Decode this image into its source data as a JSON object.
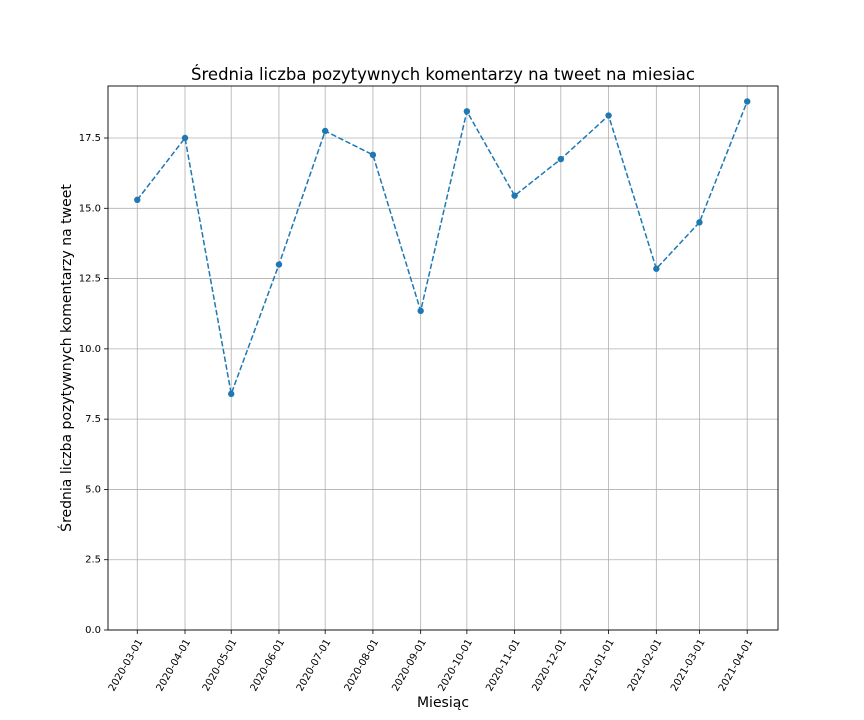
{
  "chart_data": {
    "type": "line",
    "title": "Średnia liczba pozytywnych komentarzy na tweet na miesiac",
    "xlabel": "Miesiąc",
    "ylabel": "Średnia liczba pozytywnych komentarzy na tweet",
    "categories": [
      "2020-03-01",
      "2020-04-01",
      "2020-05-01",
      "2020-06-01",
      "2020-07-01",
      "2020-08-01",
      "2020-09-01",
      "2020-10-01",
      "2020-11-01",
      "2020-12-01",
      "2021-01-01",
      "2021-02-01",
      "2021-03-01",
      "2021-04-01"
    ],
    "x_dates": [
      "2020-03-01",
      "2020-04-01",
      "2020-05-01",
      "2020-06-01",
      "2020-07-01",
      "2020-08-01",
      "2020-09-01",
      "2020-10-01",
      "2020-11-01",
      "2020-12-01",
      "2021-01-01",
      "2021-02-01",
      "2021-03-01",
      "2021-04-01"
    ],
    "series": [
      {
        "values": [
          15.3,
          17.5,
          8.4,
          13.0,
          17.75,
          16.9,
          11.35,
          18.45,
          15.45,
          16.75,
          18.3,
          12.85,
          14.5,
          18.8
        ],
        "color": "#1f77b4",
        "line_style": "dashed",
        "marker": "circle"
      }
    ],
    "yticks": [
      0.0,
      2.5,
      5.0,
      7.5,
      10.0,
      12.5,
      15.0,
      17.5
    ],
    "ytick_labels": [
      "0.0",
      "2.5",
      "5.0",
      "7.5",
      "10.0",
      "12.5",
      "15.0",
      "17.5"
    ],
    "ylim": [
      0,
      19.35
    ],
    "xlim": [
      "2020-02-11",
      "2021-04-21"
    ],
    "grid": true,
    "xtick_rotation": 60
  }
}
